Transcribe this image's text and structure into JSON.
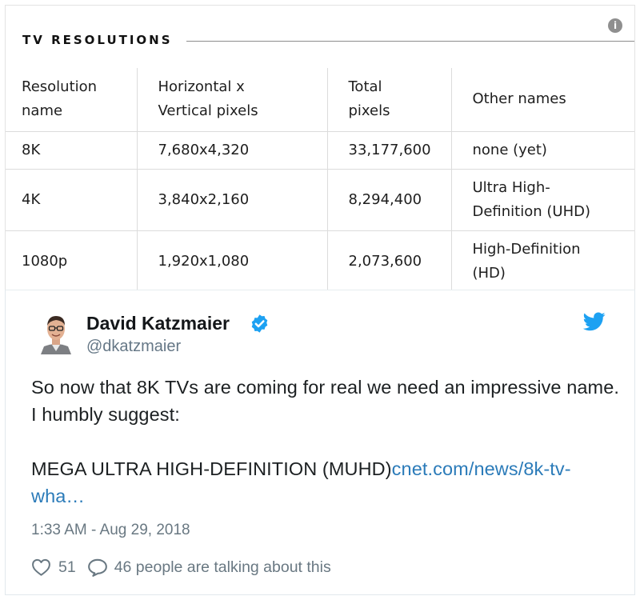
{
  "card": {
    "title": "TV RESOLUTIONS",
    "info_icon": "info-icon",
    "table": {
      "headers": [
        [
          "Resolution",
          "name"
        ],
        [
          "Horizontal x",
          "Vertical pixels"
        ],
        [
          "Total",
          "pixels"
        ],
        [
          "Other names"
        ]
      ],
      "rows": [
        {
          "name": "8K",
          "dimensions": "7,680x4,320",
          "total": "33,177,600",
          "other": [
            "none (yet)"
          ]
        },
        {
          "name": "4K",
          "dimensions": "3,840x2,160",
          "total": "8,294,400",
          "other": [
            "Ultra High-",
            "Definition (UHD)"
          ]
        },
        {
          "name": "1080p",
          "dimensions": "1,920x1,080",
          "total": "2,073,600",
          "other": [
            "High-Definition",
            "(HD)"
          ]
        }
      ]
    }
  },
  "tweet": {
    "author_name": "David Katzmaier",
    "handle": "@dkatzmaier",
    "verified_icon": "verified-badge-icon",
    "brand_icon": "twitter-bird-icon",
    "text_line1": "So now that 8K TVs are coming for real we need an impressive name. I humbly suggest:",
    "text_line2": "MEGA ULTRA HIGH-DEFINITION (MUHD)",
    "link_text": "cnet.com/news/8k-tv-wha…",
    "timestamp": "1:33 AM - Aug 29, 2018",
    "likes": "51",
    "talking": "46 people are talking about this"
  },
  "colors": {
    "verified": "#1da1f2",
    "twitter_blue": "#1da1f2",
    "link": "#2b7bb9",
    "muted_text": "#697882",
    "rule": "#8c8c8c"
  }
}
